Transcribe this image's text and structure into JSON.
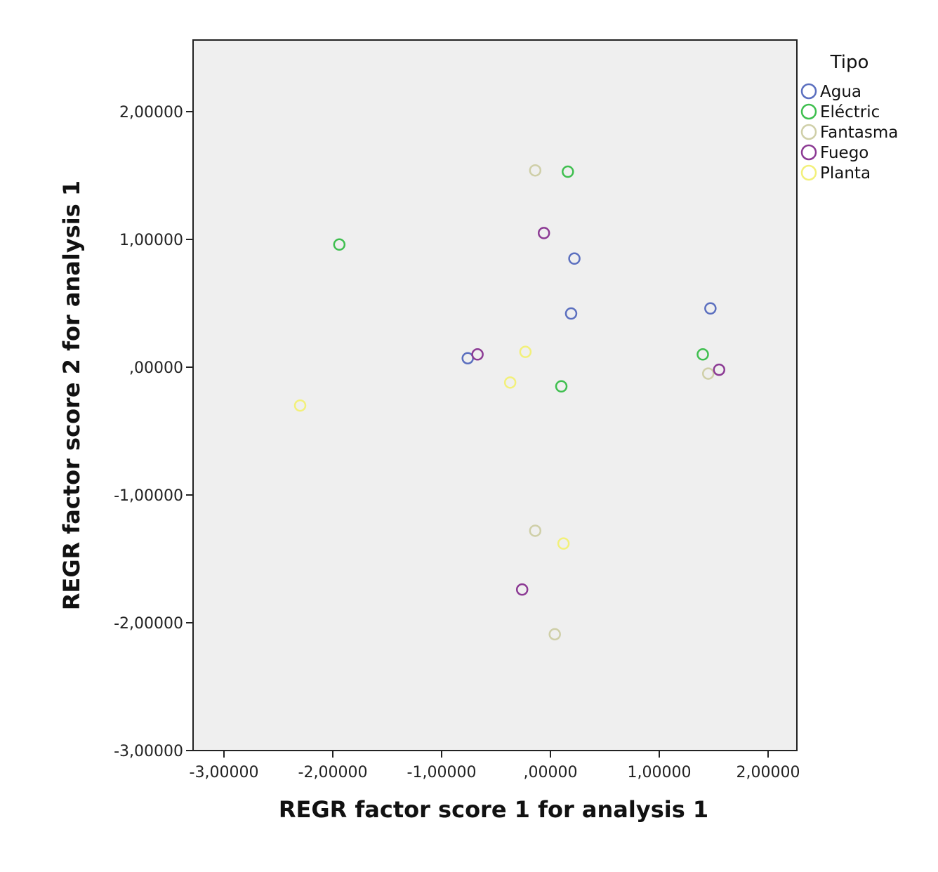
{
  "chart_data": {
    "type": "scatter",
    "xlabel": "REGR factor score   1 for analysis 1",
    "ylabel": "REGR factor score   2 for analysis 1",
    "xlim": [
      -3.3,
      2.25
    ],
    "ylim": [
      -3.0,
      2.55
    ],
    "x_ticks": [
      {
        "value": -3,
        "label": "-3,00000"
      },
      {
        "value": -2,
        "label": "-2,00000"
      },
      {
        "value": -1,
        "label": "-1,00000"
      },
      {
        "value": 0,
        "label": ",00000"
      },
      {
        "value": 1,
        "label": "1,00000"
      },
      {
        "value": 2,
        "label": "2,00000"
      }
    ],
    "y_ticks": [
      {
        "value": 2,
        "label": "2,00000"
      },
      {
        "value": 1,
        "label": "1,00000"
      },
      {
        "value": 0,
        "label": ",00000"
      },
      {
        "value": -1,
        "label": "-1,00000"
      },
      {
        "value": -2,
        "label": "-2,00000"
      },
      {
        "value": -3,
        "label": "-3,00000"
      }
    ],
    "grid": false,
    "background": "#efefef",
    "legend": {
      "title": "Tipo",
      "placement": "top-right outside plot"
    },
    "series": [
      {
        "name": "Agua",
        "color": "#5b6fbf",
        "points": [
          [
            0.22,
            0.85
          ],
          [
            0.19,
            0.42
          ],
          [
            1.47,
            0.46
          ],
          [
            -0.76,
            0.07
          ]
        ]
      },
      {
        "name": "Eléctric",
        "color": "#3fbf4f",
        "points": [
          [
            0.16,
            1.53
          ],
          [
            -1.94,
            0.96
          ],
          [
            1.4,
            0.1
          ],
          [
            0.1,
            -0.15
          ]
        ]
      },
      {
        "name": "Fantasma",
        "color": "#cfcfa8",
        "points": [
          [
            -0.14,
            1.54
          ],
          [
            1.45,
            -0.05
          ],
          [
            -0.14,
            -1.28
          ],
          [
            0.04,
            -2.09
          ]
        ]
      },
      {
        "name": "Fuego",
        "color": "#8c3a94",
        "points": [
          [
            -0.06,
            1.05
          ],
          [
            -0.67,
            0.1
          ],
          [
            1.55,
            -0.02
          ],
          [
            -0.26,
            -1.74
          ]
        ]
      },
      {
        "name": "Planta",
        "color": "#f2f07a",
        "points": [
          [
            -0.23,
            0.12
          ],
          [
            -2.3,
            -0.3
          ],
          [
            -0.37,
            -0.12
          ],
          [
            0.12,
            -1.38
          ]
        ]
      }
    ]
  }
}
